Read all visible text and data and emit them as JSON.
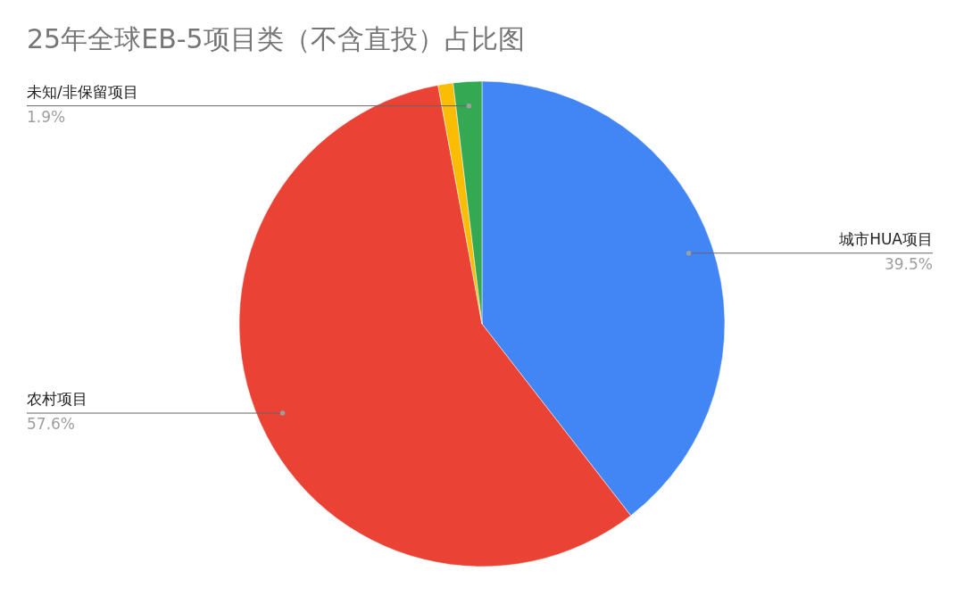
{
  "chart_data": {
    "type": "pie",
    "title": "25年全球EB-5项目类（不含直投）占比图",
    "categories": [
      "城市HUA项目",
      "农村项目",
      null,
      "未知/非保留项目"
    ],
    "values": [
      39.5,
      57.6,
      1.0,
      1.9
    ],
    "value_labels": [
      "39.5%",
      "57.6%",
      null,
      "1.9%"
    ],
    "colors": [
      "#4285f4",
      "#ea4335",
      "#fbbc04",
      "#34a853"
    ]
  }
}
